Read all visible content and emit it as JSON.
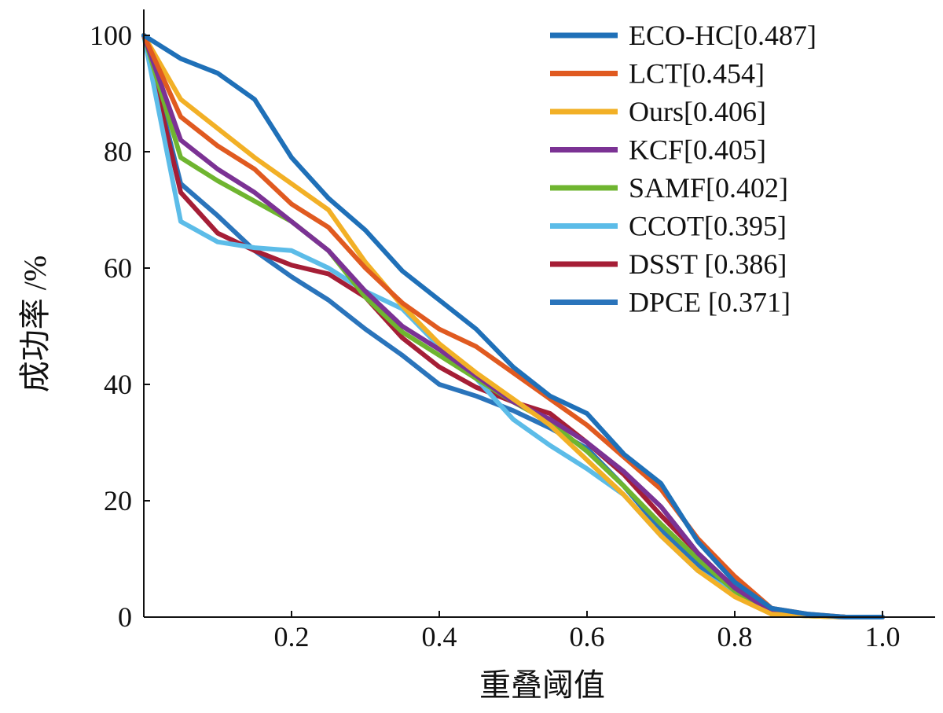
{
  "chart_data": {
    "type": "line",
    "xlabel": "重叠阈值",
    "ylabel": "成功率 /%",
    "xlim": [
      0,
      1.0
    ],
    "ylim": [
      0,
      100
    ],
    "xticks": [
      "0.2",
      "0.4",
      "0.6",
      "0.8",
      "1.0"
    ],
    "yticks": [
      "0",
      "20",
      "40",
      "60",
      "80",
      "100"
    ],
    "grid": false,
    "legend": "top-right",
    "x": [
      0,
      0.05,
      0.1,
      0.15,
      0.2,
      0.25,
      0.3,
      0.35,
      0.4,
      0.45,
      0.5,
      0.55,
      0.6,
      0.65,
      0.7,
      0.75,
      0.8,
      0.85,
      0.9,
      0.95,
      1.0
    ],
    "series": [
      {
        "name": "ECO-HC[0.487]",
        "color": "#1f70b8",
        "values": [
          100,
          96,
          93.5,
          89,
          79,
          72,
          66.5,
          59.5,
          54.5,
          49.5,
          43,
          38,
          35,
          28,
          23,
          13,
          6,
          1.5,
          0.5,
          0,
          0
        ]
      },
      {
        "name": "LCT[0.454]",
        "color": "#e05a20",
        "values": [
          100,
          86,
          81,
          77,
          71,
          67,
          60,
          54,
          49.5,
          46.5,
          42,
          37.5,
          33,
          27.5,
          22,
          13.5,
          7,
          1.5,
          0.5,
          0,
          0
        ]
      },
      {
        "name": "Ours[0.406]",
        "color": "#f2b026",
        "values": [
          100,
          89,
          84,
          79,
          74.5,
          70,
          61,
          53.5,
          47,
          42,
          37.5,
          33,
          27,
          21,
          14,
          8,
          3.5,
          0.5,
          0.2,
          0,
          0
        ]
      },
      {
        "name": "KCF[0.405]",
        "color": "#7b3294",
        "values": [
          100,
          82,
          77,
          73,
          68,
          63,
          56,
          50,
          46,
          41.5,
          37,
          34,
          30,
          25,
          19,
          11,
          5,
          1,
          0.3,
          0,
          0
        ]
      },
      {
        "name": "SAMF[0.402]",
        "color": "#6fb530",
        "values": [
          100,
          79,
          75,
          71.5,
          68,
          63,
          55,
          49,
          45,
          41,
          37,
          33.5,
          28.5,
          22.5,
          16,
          10,
          4.5,
          0.5,
          0.2,
          0,
          0
        ]
      },
      {
        "name": "CCOT[0.395]",
        "color": "#5cbce8",
        "values": [
          100,
          68,
          64.5,
          63.5,
          63,
          60,
          56,
          53,
          46.5,
          41,
          34,
          29.5,
          25.5,
          21,
          14,
          8,
          4,
          1,
          0.3,
          0,
          0
        ]
      },
      {
        "name": "DSST [0.386]",
        "color": "#a51e36",
        "values": [
          100,
          73,
          66,
          63,
          60.5,
          59,
          55,
          48,
          43,
          39.5,
          37,
          35,
          30,
          24.5,
          17.5,
          11,
          5,
          1.2,
          0.3,
          0,
          0
        ]
      },
      {
        "name": "DPCE [0.371]",
        "color": "#2a74bb",
        "values": [
          100,
          74.5,
          69,
          63,
          58.5,
          54.5,
          49.5,
          45,
          40,
          38,
          35.5,
          32.5,
          29,
          22.5,
          15,
          9,
          4,
          0.8,
          0.2,
          0,
          0
        ]
      }
    ]
  }
}
